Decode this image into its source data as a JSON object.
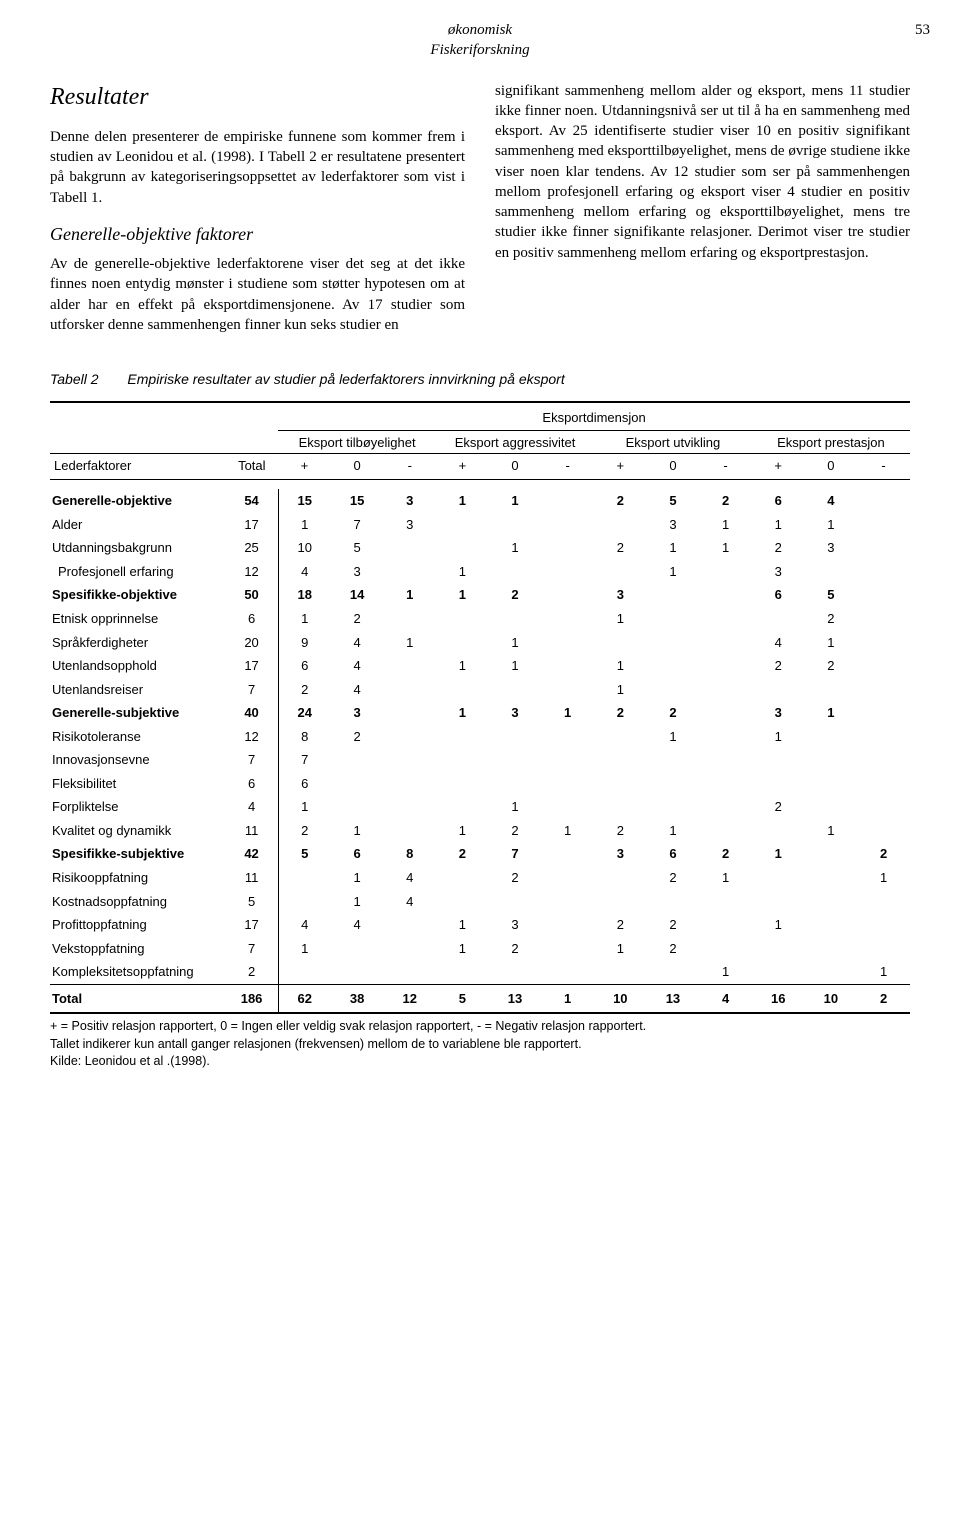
{
  "header": {
    "line1": "økonomisk",
    "line2": "Fiskeriforskning",
    "page": "53"
  },
  "left": {
    "title": "Resultater",
    "p1": "Denne delen presenterer de empiriske funnene som kommer frem i studien av Leonidou et al. (1998). I Tabell 2 er resultatene presentert på bakgrunn av kategoriseringsoppsettet av lederfaktorer som vist i Tabell 1.",
    "sub": "Generelle-objektive faktorer",
    "p2": "Av de generelle-objektive lederfaktorene viser det seg at det ikke finnes noen entydig mønster i studiene som støtter hypotesen om at alder har en effekt på eksportdimensjonene. Av 17 studier som utforsker denne sammenhengen finner kun seks studier en"
  },
  "right": {
    "p1": "signifikant sammenheng mellom alder og eksport, mens 11 studier ikke finner noen. Utdanningsnivå ser ut til å ha en sammenheng med eksport. Av 25 identifiserte studier viser 10 en positiv signifikant sammenheng med eksporttilbøyelighet, mens de øvrige studiene ikke viser noen klar tendens. Av 12 studier som ser på sammenhengen mellom profesjonell erfaring og eksport viser 4 studier en positiv sammenheng mellom erfaring og eksporttilbøyelighet, mens tre studier ikke finner signifikante relasjoner. Derimot viser tre studier en positiv sammenheng mellom erfaring og eksportprestasjon."
  },
  "table": {
    "label": "Tabell 2",
    "caption": "Empiriske resultater av studier på lederfaktorers innvirkning på eksport",
    "topgroup": "Eksportdimensjon",
    "dims": [
      "Eksport tilbøyelighet",
      "Eksport aggressivitet",
      "Eksport utvikling",
      "Eksport prestasjon"
    ],
    "rowhead": "Lederfaktorer",
    "totalhead": "Total",
    "signs": [
      "+",
      "0",
      "-"
    ],
    "rows": [
      {
        "label": "Generelle-objektive",
        "bold": true,
        "total": "54",
        "v": [
          "15",
          "15",
          "3",
          "1",
          "1",
          "",
          "2",
          "5",
          "2",
          "6",
          "4",
          ""
        ]
      },
      {
        "label": "Alder",
        "total": "17",
        "v": [
          "1",
          "7",
          "3",
          "",
          "",
          "",
          "",
          "3",
          "1",
          "1",
          "1",
          ""
        ]
      },
      {
        "label": "Utdanningsbakgrunn",
        "total": "25",
        "v": [
          "10",
          "5",
          "",
          "",
          "1",
          "",
          "2",
          "1",
          "1",
          "2",
          "3",
          ""
        ]
      },
      {
        "label": "Profesjonell erfaring",
        "sub": true,
        "total": "12",
        "v": [
          "4",
          "3",
          "",
          "1",
          "",
          "",
          "",
          "1",
          "",
          "3",
          "",
          ""
        ]
      },
      {
        "label": "Spesifikke-objektive",
        "bold": true,
        "total": "50",
        "v": [
          "18",
          "14",
          "1",
          "1",
          "2",
          "",
          "3",
          "",
          "",
          "6",
          "5",
          ""
        ]
      },
      {
        "label": "Etnisk opprinnelse",
        "total": "6",
        "v": [
          "1",
          "2",
          "",
          "",
          "",
          "",
          "1",
          "",
          "",
          "",
          "2",
          ""
        ]
      },
      {
        "label": "Språkferdigheter",
        "total": "20",
        "v": [
          "9",
          "4",
          "1",
          "",
          "1",
          "",
          "",
          "",
          "",
          "4",
          "1",
          ""
        ]
      },
      {
        "label": "Utenlandsopphold",
        "total": "17",
        "v": [
          "6",
          "4",
          "",
          "1",
          "1",
          "",
          "1",
          "",
          "",
          "2",
          "2",
          ""
        ]
      },
      {
        "label": "Utenlandsreiser",
        "total": "7",
        "v": [
          "2",
          "4",
          "",
          "",
          "",
          "",
          "1",
          "",
          "",
          "",
          "",
          ""
        ]
      },
      {
        "label": "Generelle-subjektive",
        "bold": true,
        "total": "40",
        "v": [
          "24",
          "3",
          "",
          "1",
          "3",
          "1",
          "2",
          "2",
          "",
          "3",
          "1",
          ""
        ]
      },
      {
        "label": "Risikotoleranse",
        "total": "12",
        "v": [
          "8",
          "2",
          "",
          "",
          "",
          "",
          "",
          "1",
          "",
          "1",
          "",
          ""
        ]
      },
      {
        "label": "Innovasjonsevne",
        "total": "7",
        "v": [
          "7",
          "",
          "",
          "",
          "",
          "",
          "",
          "",
          "",
          "",
          "",
          ""
        ]
      },
      {
        "label": "Fleksibilitet",
        "total": "6",
        "v": [
          "6",
          "",
          "",
          "",
          "",
          "",
          "",
          "",
          "",
          "",
          "",
          ""
        ]
      },
      {
        "label": "Forpliktelse",
        "total": "4",
        "v": [
          "1",
          "",
          "",
          "",
          "1",
          "",
          "",
          "",
          "",
          "2",
          "",
          ""
        ]
      },
      {
        "label": "Kvalitet og dynamikk",
        "total": "11",
        "v": [
          "2",
          "1",
          "",
          "1",
          "2",
          "1",
          "2",
          "1",
          "",
          "",
          "1",
          ""
        ]
      },
      {
        "label": "Spesifikke-subjektive",
        "bold": true,
        "total": "42",
        "v": [
          "5",
          "6",
          "8",
          "2",
          "7",
          "",
          "3",
          "6",
          "2",
          "1",
          "",
          "2"
        ]
      },
      {
        "label": "Risikooppfatning",
        "total": "11",
        "v": [
          "",
          "1",
          "4",
          "",
          "2",
          "",
          "",
          "2",
          "1",
          "",
          "",
          "1"
        ]
      },
      {
        "label": "Kostnadsoppfatning",
        "total": "5",
        "v": [
          "",
          "1",
          "4",
          "",
          "",
          "",
          "",
          "",
          "",
          "",
          "",
          ""
        ]
      },
      {
        "label": "Profittoppfatning",
        "total": "17",
        "v": [
          "4",
          "4",
          "",
          "1",
          "3",
          "",
          "2",
          "2",
          "",
          "1",
          "",
          ""
        ]
      },
      {
        "label": "Vekstoppfatning",
        "total": "7",
        "v": [
          "1",
          "",
          "",
          "1",
          "2",
          "",
          "1",
          "2",
          "",
          "",
          "",
          ""
        ]
      },
      {
        "label": "Kompleksitetsoppfatning",
        "total": "2",
        "v": [
          "",
          "",
          "",
          "",
          "",
          "",
          "",
          "",
          "1",
          "",
          "",
          "1"
        ]
      }
    ],
    "totalrow": {
      "label": "Total",
      "total": "186",
      "v": [
        "62",
        "38",
        "12",
        "5",
        "13",
        "1",
        "10",
        "13",
        "4",
        "16",
        "10",
        "2"
      ]
    },
    "foot1": "+ = Positiv relasjon rapportert, 0 = Ingen eller veldig svak relasjon rapportert, - = Negativ relasjon rapportert.",
    "foot2": "Tallet indikerer kun antall ganger relasjonen (frekvensen) mellom de to variablene ble rapportert.",
    "foot3": "Kilde: Leonidou et al .(1998)."
  }
}
